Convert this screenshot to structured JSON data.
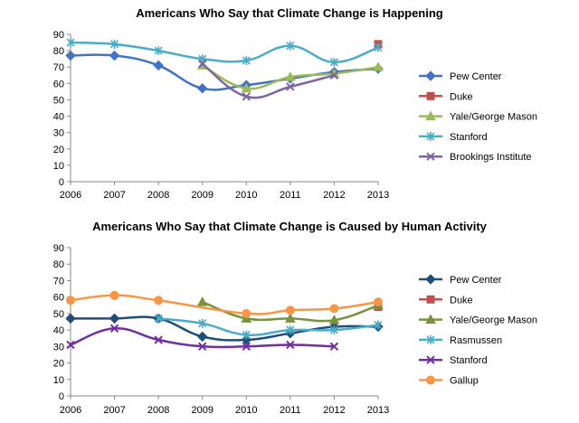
{
  "chart_data": [
    {
      "type": "line",
      "title": "Americans Who Say that Climate Change is Happening",
      "xlabel": "",
      "ylabel": "",
      "x": [
        2006,
        2007,
        2008,
        2009,
        2010,
        2011,
        2012,
        2013
      ],
      "xlim": [
        2006,
        2013
      ],
      "ylim": [
        0,
        90
      ],
      "yticks": [
        0,
        10,
        20,
        30,
        40,
        50,
        60,
        70,
        80,
        90
      ],
      "grid": false,
      "legend_position": "right",
      "series": [
        {
          "name": "Pew Center",
          "color": "#4472C4",
          "marker": "diamond",
          "points": [
            [
              2006,
              77
            ],
            [
              2007,
              77
            ],
            [
              2008,
              71
            ],
            [
              2009,
              57
            ],
            [
              2010,
              59
            ],
            [
              2011,
              63
            ],
            [
              2012,
              67
            ],
            [
              2013,
              69
            ]
          ]
        },
        {
          "name": "Duke",
          "color": "#C0504D",
          "marker": "square",
          "points": [
            [
              2013,
              84
            ]
          ]
        },
        {
          "name": "Yale/George Mason",
          "color": "#9BBB59",
          "marker": "triangle",
          "points": [
            [
              2009,
              71
            ],
            [
              2010,
              57
            ],
            [
              2011,
              64
            ],
            [
              2012,
              66
            ],
            [
              2013,
              70
            ]
          ]
        },
        {
          "name": "Stanford",
          "color": "#4BACC6",
          "marker": "asterisk",
          "points": [
            [
              2006,
              85
            ],
            [
              2007,
              84
            ],
            [
              2008,
              80
            ],
            [
              2009,
              75
            ],
            [
              2010,
              74
            ],
            [
              2011,
              83
            ],
            [
              2012,
              73
            ],
            [
              2013,
              82
            ]
          ]
        },
        {
          "name": "Brookings Institute",
          "color": "#8064A2",
          "marker": "x",
          "points": [
            [
              2009,
              72
            ],
            [
              2010,
              52
            ],
            [
              2011,
              58
            ],
            [
              2012,
              65
            ]
          ]
        }
      ]
    },
    {
      "type": "line",
      "title": "Americans Who Say that Climate Change is Caused by Human Activity",
      "xlabel": "",
      "ylabel": "",
      "x": [
        2006,
        2007,
        2008,
        2009,
        2010,
        2011,
        2012,
        2013
      ],
      "xlim": [
        2006,
        2013
      ],
      "ylim": [
        0,
        90
      ],
      "yticks": [
        0,
        10,
        20,
        30,
        40,
        50,
        60,
        70,
        80,
        90
      ],
      "grid": false,
      "legend_position": "right",
      "series": [
        {
          "name": "Pew Center",
          "color": "#1F4E79",
          "marker": "diamond",
          "points": [
            [
              2006,
              47
            ],
            [
              2007,
              47
            ],
            [
              2008,
              47
            ],
            [
              2009,
              36
            ],
            [
              2010,
              34
            ],
            [
              2011,
              38
            ],
            [
              2012,
              42
            ],
            [
              2013,
              42
            ]
          ]
        },
        {
          "name": "Duke",
          "color": "#C0504D",
          "marker": "square",
          "points": [
            [
              2013,
              54
            ]
          ]
        },
        {
          "name": "Yale/George Mason",
          "color": "#77933C",
          "marker": "triangle",
          "points": [
            [
              2009,
              57
            ],
            [
              2010,
              47
            ],
            [
              2011,
              47
            ],
            [
              2012,
              46
            ],
            [
              2013,
              55
            ]
          ]
        },
        {
          "name": "Rasmussen",
          "color": "#4BACC6",
          "marker": "asterisk",
          "points": [
            [
              2008,
              47
            ],
            [
              2009,
              44
            ],
            [
              2010,
              37
            ],
            [
              2011,
              40
            ],
            [
              2012,
              40
            ],
            [
              2013,
              43
            ]
          ]
        },
        {
          "name": "Stanford",
          "color": "#7030A0",
          "marker": "x",
          "points": [
            [
              2006,
              31
            ],
            [
              2007,
              41
            ],
            [
              2008,
              34
            ],
            [
              2009,
              30
            ],
            [
              2010,
              30
            ],
            [
              2011,
              31
            ],
            [
              2012,
              30
            ]
          ]
        },
        {
          "name": "Gallup",
          "color": "#F79646",
          "marker": "circle",
          "points": [
            [
              2006,
              58
            ],
            [
              2007,
              61
            ],
            [
              2008,
              58
            ],
            [
              2010,
              50
            ],
            [
              2011,
              52
            ],
            [
              2012,
              53
            ],
            [
              2013,
              57
            ]
          ]
        }
      ]
    }
  ]
}
